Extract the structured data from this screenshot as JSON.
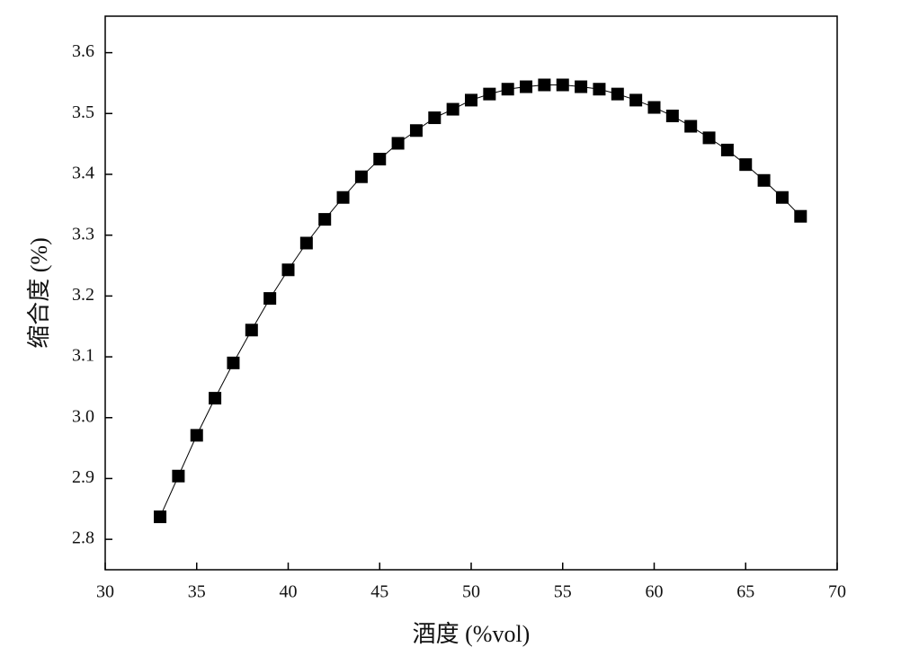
{
  "chart_data": {
    "type": "line",
    "x_label": "酒度 (%vol)",
    "y_label": "缩合度 (%)",
    "x": [
      33,
      34,
      35,
      36,
      37,
      38,
      39,
      40,
      41,
      42,
      43,
      44,
      45,
      46,
      47,
      48,
      49,
      50,
      51,
      52,
      53,
      54,
      55,
      56,
      57,
      58,
      59,
      60,
      61,
      62,
      63,
      64,
      65,
      66,
      67,
      68
    ],
    "series": [
      {
        "color": "#000000",
        "marker": "square",
        "values": [
          2.837,
          2.904,
          2.971,
          3.032,
          3.09,
          3.144,
          3.196,
          3.243,
          3.287,
          3.326,
          3.362,
          3.396,
          3.425,
          3.451,
          3.472,
          3.493,
          3.507,
          3.522,
          3.532,
          3.54,
          3.544,
          3.547,
          3.547,
          3.544,
          3.54,
          3.532,
          3.522,
          3.51,
          3.496,
          3.479,
          3.46,
          3.44,
          3.416,
          3.39,
          3.362,
          3.331
        ]
      }
    ],
    "xlim": [
      30,
      70
    ],
    "xticks": [
      30,
      35,
      40,
      45,
      50,
      55,
      60,
      65,
      70
    ],
    "ylim": [
      2.75,
      3.66
    ],
    "yticks": [
      2.8,
      2.9,
      {
        "value": 3,
        "label": "3.0"
      },
      3.1,
      3.2,
      3.3,
      3.4,
      3.5,
      3.6
    ],
    "grid": false
  }
}
